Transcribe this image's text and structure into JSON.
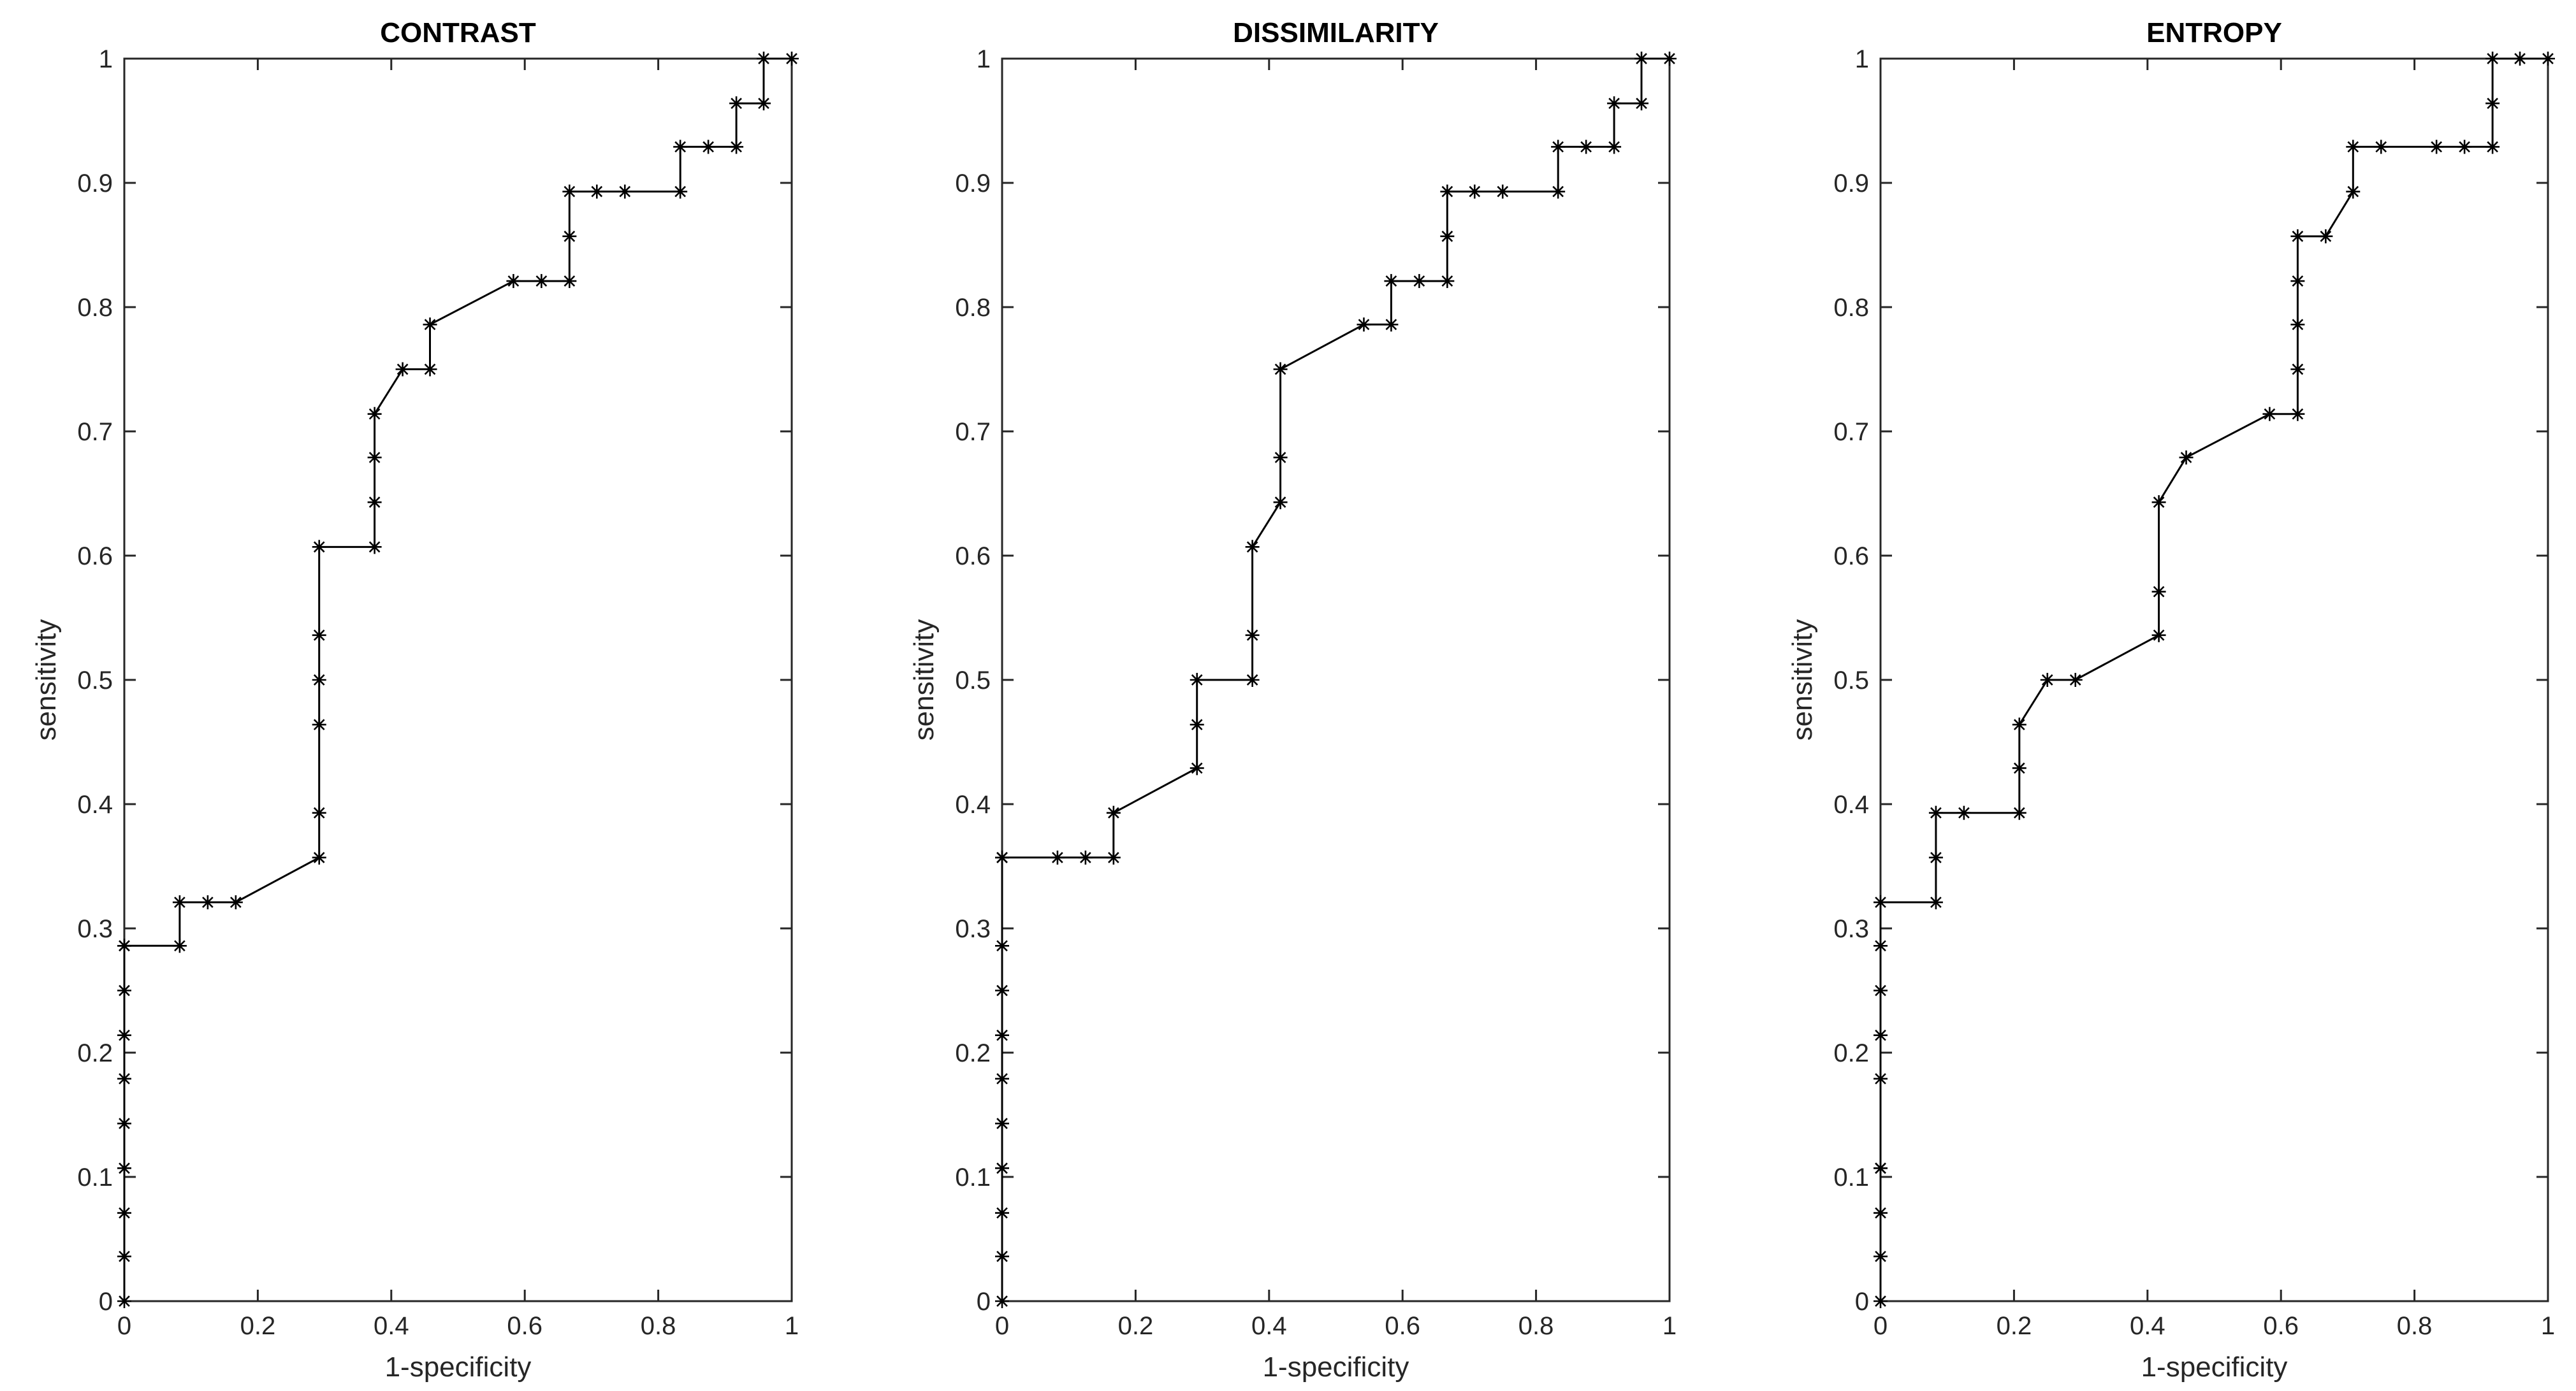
{
  "chart_data": [
    {
      "type": "line",
      "title": "CONTRAST",
      "xlabel": "1-specificity",
      "ylabel": "sensitivity",
      "xlim": [
        0,
        1
      ],
      "ylim": [
        0,
        1
      ],
      "xticks": [
        "0",
        "0.2",
        "0.4",
        "0.6",
        "0.8",
        "1"
      ],
      "yticks": [
        "0",
        "0.1",
        "0.2",
        "0.3",
        "0.4",
        "0.5",
        "0.6",
        "0.7",
        "0.8",
        "0.9",
        "1"
      ],
      "grid": false,
      "marker": "*",
      "color": "#000000",
      "x": [
        0,
        0,
        0,
        0,
        0,
        0,
        0,
        0,
        0,
        0,
        0.083,
        0.083,
        0.125,
        0.167,
        0.292,
        0.292,
        0.292,
        0.292,
        0.292,
        0.292,
        0.375,
        0.375,
        0.375,
        0.375,
        0.417,
        0.458,
        0.458,
        0.583,
        0.625,
        0.667,
        0.667,
        0.667,
        0.708,
        0.75,
        0.833,
        0.833,
        0.875,
        0.917,
        0.917,
        0.958,
        0.958,
        1
      ],
      "y": [
        0,
        0.036,
        0.071,
        0.107,
        0.143,
        0.179,
        0.214,
        0.25,
        0.286,
        0.286,
        0.286,
        0.321,
        0.321,
        0.321,
        0.357,
        0.393,
        0.464,
        0.5,
        0.536,
        0.607,
        0.607,
        0.643,
        0.679,
        0.714,
        0.75,
        0.75,
        0.786,
        0.821,
        0.821,
        0.821,
        0.857,
        0.893,
        0.893,
        0.893,
        0.893,
        0.929,
        0.929,
        0.929,
        0.964,
        0.964,
        1,
        1
      ]
    },
    {
      "type": "line",
      "title": "DISSIMILARITY",
      "xlabel": "1-specificity",
      "ylabel": "sensitivity",
      "xlim": [
        0,
        1
      ],
      "ylim": [
        0,
        1
      ],
      "xticks": [
        "0",
        "0.2",
        "0.4",
        "0.6",
        "0.8",
        "1"
      ],
      "yticks": [
        "0",
        "0.1",
        "0.2",
        "0.3",
        "0.4",
        "0.5",
        "0.6",
        "0.7",
        "0.8",
        "0.9",
        "1"
      ],
      "grid": false,
      "marker": "*",
      "color": "#000000",
      "x": [
        0,
        0,
        0,
        0,
        0,
        0,
        0,
        0,
        0,
        0,
        0,
        0.083,
        0.125,
        0.167,
        0.167,
        0.292,
        0.292,
        0.292,
        0.375,
        0.375,
        0.375,
        0.417,
        0.417,
        0.417,
        0.542,
        0.583,
        0.583,
        0.625,
        0.667,
        0.667,
        0.667,
        0.708,
        0.75,
        0.833,
        0.833,
        0.875,
        0.917,
        0.917,
        0.958,
        0.958,
        1
      ],
      "y": [
        0,
        0.036,
        0.071,
        0.107,
        0.143,
        0.179,
        0.214,
        0.25,
        0.286,
        0.357,
        0.357,
        0.357,
        0.357,
        0.357,
        0.393,
        0.429,
        0.464,
        0.5,
        0.5,
        0.536,
        0.607,
        0.643,
        0.679,
        0.75,
        0.786,
        0.786,
        0.821,
        0.821,
        0.821,
        0.857,
        0.893,
        0.893,
        0.893,
        0.893,
        0.929,
        0.929,
        0.929,
        0.964,
        0.964,
        1,
        1
      ]
    },
    {
      "type": "line",
      "title": "ENTROPY",
      "xlabel": "1-specificity",
      "ylabel": "sensitivity",
      "xlim": [
        0,
        1
      ],
      "ylim": [
        0,
        1
      ],
      "xticks": [
        "0",
        "0.2",
        "0.4",
        "0.6",
        "0.8",
        "1"
      ],
      "yticks": [
        "0",
        "0.1",
        "0.2",
        "0.3",
        "0.4",
        "0.5",
        "0.6",
        "0.7",
        "0.8",
        "0.9",
        "1"
      ],
      "grid": false,
      "marker": "*",
      "color": "#000000",
      "x": [
        0,
        0,
        0,
        0,
        0,
        0,
        0,
        0,
        0,
        0,
        0.083,
        0.083,
        0.083,
        0.125,
        0.208,
        0.208,
        0.208,
        0.25,
        0.292,
        0.417,
        0.417,
        0.417,
        0.458,
        0.583,
        0.625,
        0.625,
        0.625,
        0.625,
        0.625,
        0.667,
        0.708,
        0.708,
        0.75,
        0.833,
        0.875,
        0.917,
        0.917,
        0.917,
        0.958,
        1
      ],
      "y": [
        0,
        0.036,
        0.071,
        0.107,
        0.107,
        0.179,
        0.214,
        0.25,
        0.286,
        0.321,
        0.321,
        0.357,
        0.393,
        0.393,
        0.393,
        0.429,
        0.464,
        0.5,
        0.5,
        0.536,
        0.571,
        0.643,
        0.679,
        0.714,
        0.714,
        0.75,
        0.786,
        0.821,
        0.857,
        0.857,
        0.893,
        0.929,
        0.929,
        0.929,
        0.929,
        0.929,
        0.964,
        1,
        1,
        1
      ]
    }
  ]
}
